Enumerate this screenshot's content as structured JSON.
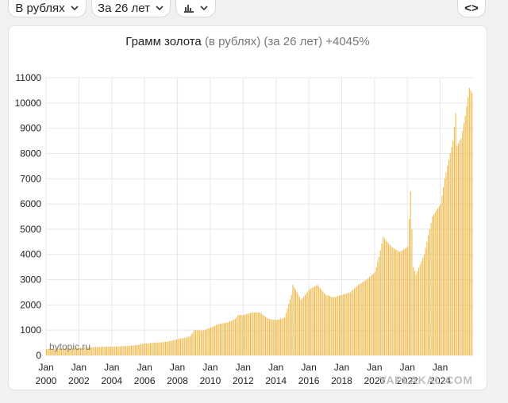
{
  "toolbar": {
    "currency_label": "В рублях",
    "period_label": "За 26 лет",
    "chart_type_icon": "bar-chart-icon",
    "embed_label": "<>"
  },
  "colors": {
    "bar": "#f0ba4a",
    "bar_stroke": "#e0a536",
    "grid": "#e8e8e8"
  },
  "watermark": "bytopic.ru",
  "corner_mark": "YAPLAKAL.COM",
  "chart_data": {
    "type": "bar",
    "title": "Грамм золота",
    "subtitle": "(в рублях) (за 26 лет) +4045%",
    "xlabel": "",
    "ylabel": "",
    "ylim": [
      0,
      11000
    ],
    "yticks": [
      0,
      1000,
      2000,
      3000,
      4000,
      5000,
      6000,
      7000,
      8000,
      9000,
      10000,
      11000
    ],
    "xlim": [
      "2000-01",
      "2026-01"
    ],
    "xticks": [
      {
        "top": "Jan",
        "bottom": "2000",
        "x": "2000-01"
      },
      {
        "top": "Jan",
        "bottom": "2002",
        "x": "2002-01"
      },
      {
        "top": "Jan",
        "bottom": "2004",
        "x": "2004-01"
      },
      {
        "top": "Jan",
        "bottom": "2006",
        "x": "2006-01"
      },
      {
        "top": "Jan",
        "bottom": "2008",
        "x": "2008-01"
      },
      {
        "top": "Jan",
        "bottom": "2010",
        "x": "2010-01"
      },
      {
        "top": "Jan",
        "bottom": "2012",
        "x": "2012-01"
      },
      {
        "top": "Jan",
        "bottom": "2014",
        "x": "2014-01"
      },
      {
        "top": "Jan",
        "bottom": "2016",
        "x": "2016-01"
      },
      {
        "top": "Jan",
        "bottom": "2018",
        "x": "2018-01"
      },
      {
        "top": "Jan",
        "bottom": "2020",
        "x": "2020-01"
      },
      {
        "top": "Jan",
        "bottom": "2022",
        "x": "2022-01"
      },
      {
        "top": "Jan",
        "bottom": "2024",
        "x": "2024-01"
      }
    ],
    "grid": true,
    "legend": "none",
    "series": [
      {
        "points": [
          [
            "2000-01",
            250
          ],
          [
            "2000-07",
            260
          ],
          [
            "2001-01",
            280
          ],
          [
            "2001-07",
            290
          ],
          [
            "2002-01",
            300
          ],
          [
            "2002-07",
            310
          ],
          [
            "2003-01",
            330
          ],
          [
            "2003-07",
            340
          ],
          [
            "2004-01",
            350
          ],
          [
            "2004-07",
            360
          ],
          [
            "2005-01",
            380
          ],
          [
            "2005-07",
            410
          ],
          [
            "2006-01",
            470
          ],
          [
            "2006-07",
            500
          ],
          [
            "2007-01",
            520
          ],
          [
            "2007-07",
            560
          ],
          [
            "2008-01",
            650
          ],
          [
            "2008-07",
            700
          ],
          [
            "2008-10",
            760
          ],
          [
            "2009-01",
            1000
          ],
          [
            "2009-07",
            980
          ],
          [
            "2010-01",
            1100
          ],
          [
            "2010-07",
            1250
          ],
          [
            "2011-01",
            1300
          ],
          [
            "2011-07",
            1450
          ],
          [
            "2011-09",
            1600
          ],
          [
            "2012-01",
            1600
          ],
          [
            "2012-07",
            1700
          ],
          [
            "2013-01",
            1700
          ],
          [
            "2013-07",
            1450
          ],
          [
            "2014-01",
            1400
          ],
          [
            "2014-07",
            1500
          ],
          [
            "2014-12",
            2400
          ],
          [
            "2015-01",
            2800
          ],
          [
            "2015-07",
            2200
          ],
          [
            "2016-01",
            2600
          ],
          [
            "2016-07",
            2800
          ],
          [
            "2017-01",
            2400
          ],
          [
            "2017-07",
            2300
          ],
          [
            "2018-01",
            2400
          ],
          [
            "2018-07",
            2500
          ],
          [
            "2019-01",
            2800
          ],
          [
            "2019-07",
            3000
          ],
          [
            "2020-01",
            3300
          ],
          [
            "2020-04",
            3900
          ],
          [
            "2020-07",
            4700
          ],
          [
            "2020-10",
            4500
          ],
          [
            "2021-01",
            4300
          ],
          [
            "2021-07",
            4100
          ],
          [
            "2022-01",
            4300
          ],
          [
            "2022-03",
            6500
          ],
          [
            "2022-05",
            3500
          ],
          [
            "2022-07",
            3200
          ],
          [
            "2023-01",
            4000
          ],
          [
            "2023-07",
            5500
          ],
          [
            "2024-01",
            6000
          ],
          [
            "2024-04",
            7000
          ],
          [
            "2024-10",
            8500
          ],
          [
            "2024-12",
            9600
          ],
          [
            "2025-01",
            8300
          ],
          [
            "2025-04",
            8600
          ],
          [
            "2025-07",
            9500
          ],
          [
            "2025-10",
            10600
          ],
          [
            "2025-12",
            10400
          ]
        ]
      }
    ]
  }
}
